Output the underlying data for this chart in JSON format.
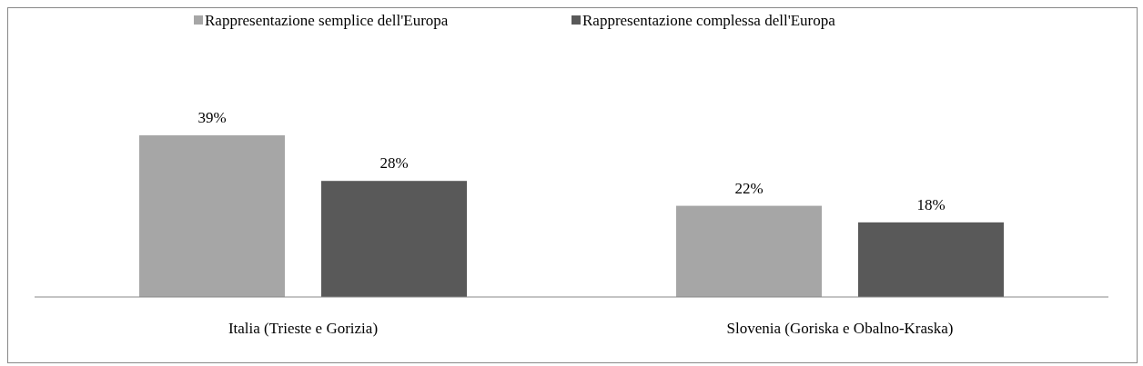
{
  "chart_data": {
    "type": "bar",
    "categories": [
      "Italia (Trieste e Gorizia)",
      "Slovenia (Goriska e Obalno-Kraska)"
    ],
    "series": [
      {
        "name": "Rappresentazione semplice dell'Europa",
        "color": "#a6a6a6",
        "values": [
          39,
          22
        ],
        "value_labels": [
          "39%",
          "22%"
        ]
      },
      {
        "name": "Rappresentazione complessa dell'Europa",
        "color": "#595959",
        "values": [
          28,
          18
        ],
        "value_labels": [
          "28%",
          "18%"
        ]
      }
    ],
    "legend": "top"
  }
}
